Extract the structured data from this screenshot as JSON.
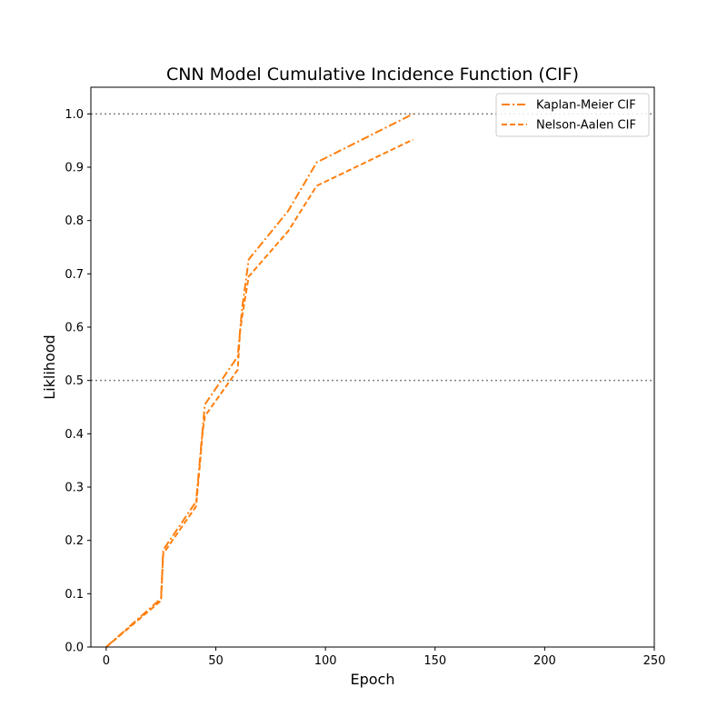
{
  "chart_data": {
    "type": "line",
    "title": "CNN Model Cumulative Incidence Function (CIF)",
    "xlabel": "Epoch",
    "ylabel": "Liklihood",
    "xlim": [
      -7,
      250
    ],
    "ylim": [
      0,
      1.05
    ],
    "xticks": [
      0,
      50,
      100,
      150,
      200,
      250
    ],
    "yticks": [
      0.0,
      0.1,
      0.2,
      0.3,
      0.4,
      0.5,
      0.6,
      0.7,
      0.8,
      0.9,
      1.0
    ],
    "xtick_labels": [
      "0",
      "50",
      "100",
      "150",
      "200",
      "250"
    ],
    "ytick_labels": [
      "0.0",
      "0.1",
      "0.2",
      "0.3",
      "0.4",
      "0.5",
      "0.6",
      "0.7",
      "0.8",
      "0.9",
      "1.0"
    ],
    "grid": false,
    "legend_position": "top-right",
    "reference_lines": [
      {
        "y": 1.0,
        "style": "dotted",
        "color": "#808080"
      },
      {
        "y": 0.5,
        "style": "dotted",
        "color": "#808080"
      }
    ],
    "series": [
      {
        "name": "Kaplan-Meier CIF",
        "style": "dashdot",
        "color": "#ff7f0e",
        "x": [
          0,
          25,
          26,
          41,
          43,
          44,
          45,
          60,
          61,
          62,
          65,
          83,
          96,
          140
        ],
        "y": [
          0.0,
          0.091,
          0.182,
          0.273,
          0.364,
          0.409,
          0.455,
          0.545,
          0.591,
          0.636,
          0.727,
          0.818,
          0.909,
          1.0
        ]
      },
      {
        "name": "Nelson-Aalen CIF",
        "style": "dashed",
        "color": "#ff7f0e",
        "x": [
          0,
          25,
          26,
          41,
          43,
          44,
          45,
          60,
          61,
          62,
          65,
          83,
          96,
          140
        ],
        "y": [
          0.0,
          0.087,
          0.175,
          0.264,
          0.355,
          0.405,
          0.433,
          0.52,
          0.59,
          0.62,
          0.695,
          0.78,
          0.865,
          0.952
        ]
      }
    ]
  }
}
